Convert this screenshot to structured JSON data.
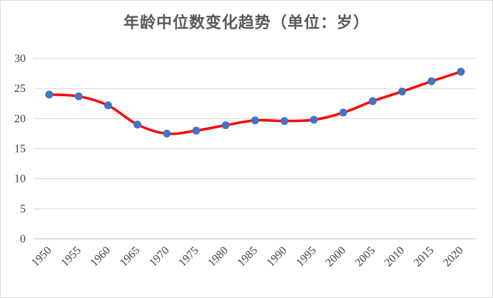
{
  "chart_data": {
    "type": "line",
    "title": "年龄中位数变化趋势（单位：岁）",
    "xlabel": "",
    "ylabel": "",
    "x": [
      "1950",
      "1955",
      "1960",
      "1965",
      "1970",
      "1975",
      "1980",
      "1985",
      "1990",
      "1995",
      "2000",
      "2005",
      "2010",
      "2015",
      "2020"
    ],
    "series": [
      {
        "values": [
          24.0,
          23.7,
          22.2,
          19.0,
          17.5,
          18.0,
          18.9,
          19.7,
          19.6,
          19.8,
          21.0,
          22.9,
          24.5,
          26.2,
          27.8
        ]
      }
    ],
    "ylim": [
      0,
      30
    ],
    "yticks": [
      "0",
      "5",
      "10",
      "15",
      "20",
      "25",
      "30"
    ],
    "grid": true,
    "legend": "none",
    "line_color": "#ff0000",
    "marker_color": "#4472c4",
    "smooth": true
  }
}
